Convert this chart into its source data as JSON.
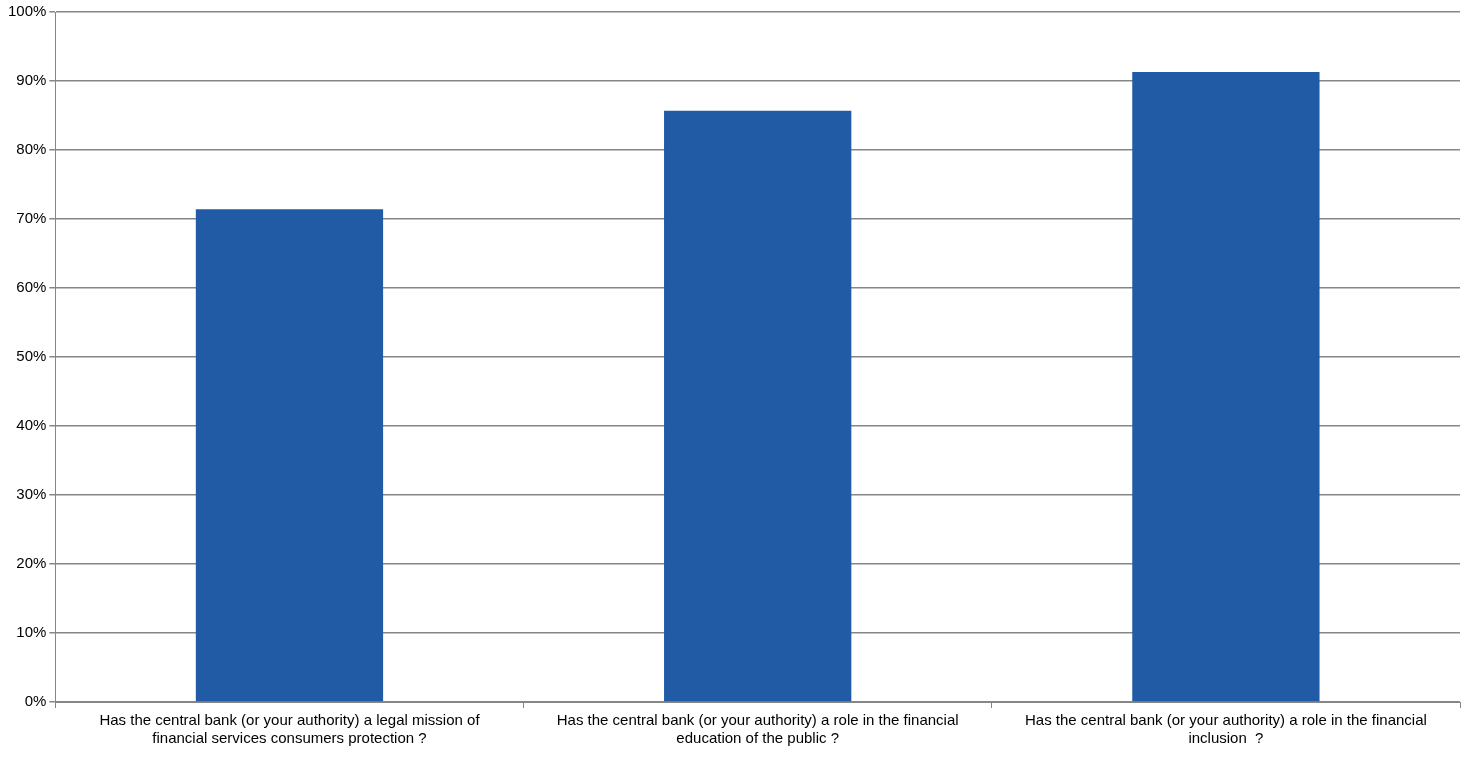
{
  "chart_data": {
    "type": "bar",
    "categories": [
      "Has the central bank (or your authority) a legal mission of financial services consumers protection ?",
      "Has the central bank (or your authority) a role in the financial education of the public ?",
      "Has the central bank (or your authority) a role in the financial inclusion  ?"
    ],
    "values": [
      71.4,
      85.7,
      91.3
    ],
    "color": "#215ba6",
    "ylim": [
      0,
      100
    ],
    "yticks": [
      {
        "value": 0,
        "label": "0%"
      },
      {
        "value": 10,
        "label": "10%"
      },
      {
        "value": 20,
        "label": "20%"
      },
      {
        "value": 30,
        "label": "30%"
      },
      {
        "value": 40,
        "label": "40%"
      },
      {
        "value": 50,
        "label": "50%"
      },
      {
        "value": 60,
        "label": "60%"
      },
      {
        "value": 70,
        "label": "70%"
      },
      {
        "value": 80,
        "label": "80%"
      },
      {
        "value": 90,
        "label": "90%"
      },
      {
        "value": 100,
        "label": "100%"
      }
    ],
    "grid": "y"
  }
}
